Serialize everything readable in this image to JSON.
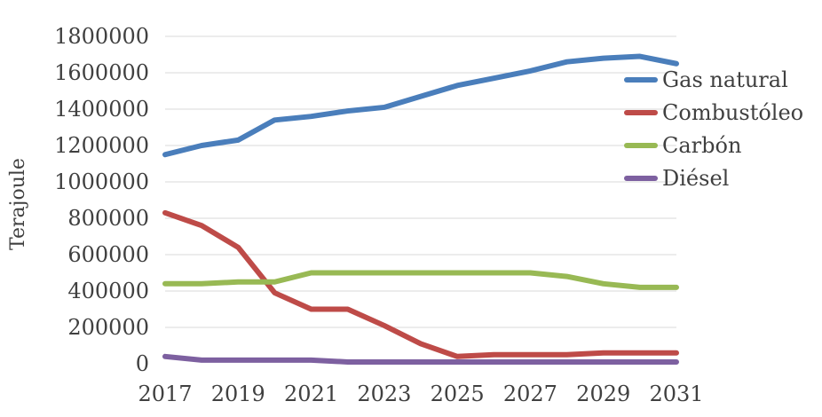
{
  "chart_data": {
    "type": "line",
    "title": "",
    "ylabel": "Terajoule",
    "xlabel": "",
    "ylim": [
      0,
      1800000
    ],
    "yticks": [
      0,
      200000,
      400000,
      600000,
      800000,
      1000000,
      1200000,
      1400000,
      1600000,
      1800000
    ],
    "ytick_labels": [
      "0",
      "200000",
      "400000",
      "600000",
      "800000",
      "1000000",
      "1200000",
      "1400000",
      "1600000",
      "1800000"
    ],
    "x": [
      2017,
      2018,
      2019,
      2020,
      2021,
      2022,
      2023,
      2024,
      2025,
      2026,
      2027,
      2028,
      2029,
      2030,
      2031
    ],
    "xtick_labels": [
      "2017",
      "2019",
      "2021",
      "2023",
      "2025",
      "2027",
      "2029",
      "2031"
    ],
    "grid": "horizontal",
    "legend_position": "right",
    "series": [
      {
        "name": "Gas natural",
        "color": "#4a7ebb",
        "values": [
          1150000,
          1200000,
          1230000,
          1340000,
          1360000,
          1390000,
          1410000,
          1470000,
          1530000,
          1570000,
          1610000,
          1660000,
          1680000,
          1690000,
          1650000
        ]
      },
      {
        "name": "Combustóleo",
        "color": "#be4b48",
        "values": [
          830000,
          760000,
          640000,
          390000,
          300000,
          300000,
          210000,
          110000,
          40000,
          50000,
          50000,
          50000,
          60000,
          60000,
          60000
        ]
      },
      {
        "name": "Carbón",
        "color": "#98b954",
        "values": [
          440000,
          440000,
          450000,
          450000,
          500000,
          500000,
          500000,
          500000,
          500000,
          500000,
          500000,
          480000,
          440000,
          420000,
          420000
        ]
      },
      {
        "name": "Diésel",
        "color": "#7d60a0",
        "values": [
          40000,
          20000,
          20000,
          20000,
          20000,
          10000,
          10000,
          10000,
          10000,
          10000,
          10000,
          10000,
          10000,
          10000,
          10000
        ]
      }
    ]
  }
}
